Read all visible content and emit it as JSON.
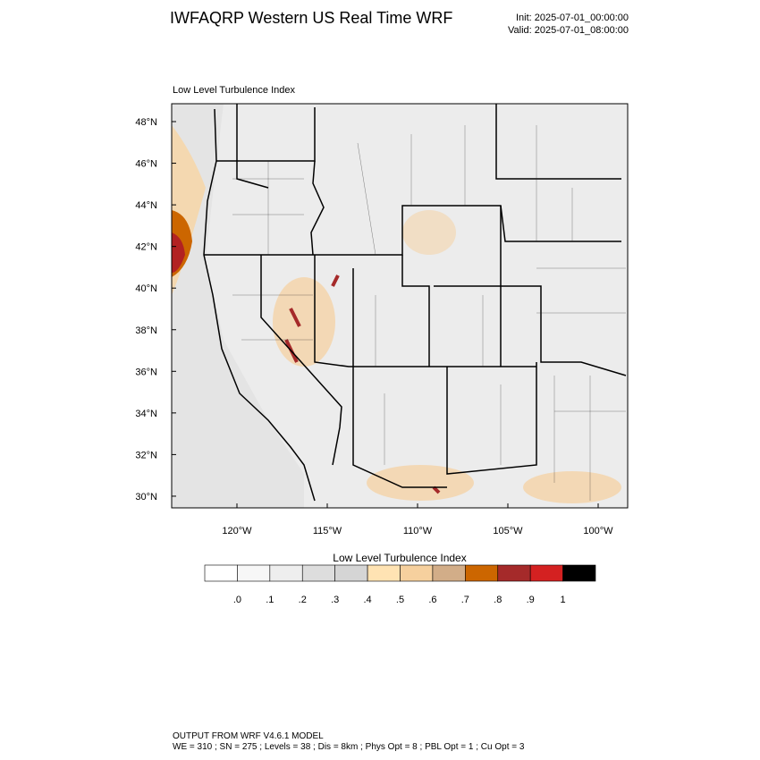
{
  "header": {
    "title": "IWFAQRP Western US Real Time WRF",
    "init": "Init: 2025-07-01_00:00:00",
    "valid": "Valid: 2025-07-01_08:00:00"
  },
  "map": {
    "subtitle": "Low Level Turbulence Index",
    "lat_labels": [
      "48°N",
      "46°N",
      "44°N",
      "42°N",
      "40°N",
      "38°N",
      "36°N",
      "34°N",
      "32°N",
      "30°N"
    ],
    "lon_labels": [
      "120°W",
      "115°W",
      "110°W",
      "105°W",
      "100°W"
    ]
  },
  "colorbar": {
    "title": "Low Level Turbulence Index",
    "labels": [
      ".0",
      ".1",
      ".2",
      ".3",
      ".4",
      ".5",
      ".6",
      ".7",
      ".8",
      ".9",
      "1"
    ],
    "colors": [
      "#ffffff",
      "#f7f7f7",
      "#eeeeee",
      "#dddddd",
      "#d5d5d5",
      "#ffe3b3",
      "#f6d09e",
      "#d2ad88",
      "#cc6600",
      "#a52a2a",
      "#d42121",
      "#000000"
    ]
  },
  "footer": {
    "lines": [
      "OUTPUT FROM WRF V4.6.1 MODEL",
      "WE = 310 ; SN = 275 ; Levels = 38 ; Dis = 8km ; Phys Opt = 8 ; PBL Opt = 1 ; Cu Opt = 3"
    ]
  }
}
